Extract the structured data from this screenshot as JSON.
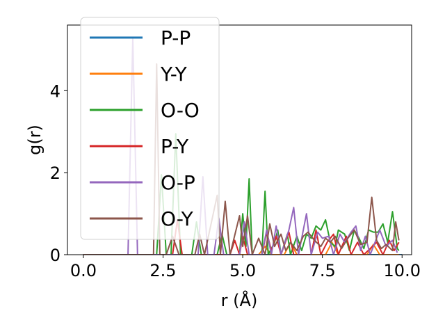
{
  "chart_data": {
    "type": "line",
    "title": "",
    "xlabel": "r (Å)",
    "ylabel": "g(r)",
    "xlim": [
      -0.5,
      10.3
    ],
    "ylim": [
      0,
      5.6
    ],
    "xticks": [
      0.0,
      2.5,
      5.0,
      7.5,
      10.0
    ],
    "xtick_labels": [
      "0.0",
      "2.5",
      "5.0",
      "7.5",
      "10.0"
    ],
    "yticks": [
      0,
      2,
      4
    ],
    "ytick_labels": [
      "0",
      "2",
      "4"
    ],
    "grid": false,
    "legend_position": "top-left",
    "series": [
      {
        "name": "P-P",
        "color": "#1f77b4",
        "points": [
          [
            0.0,
            0
          ],
          [
            10.0,
            0
          ]
        ]
      },
      {
        "name": "Y-Y",
        "color": "#ff7f0e",
        "points": [
          [
            0.0,
            0
          ],
          [
            5.5,
            0
          ],
          [
            5.7,
            0.2
          ],
          [
            5.9,
            0
          ],
          [
            6.3,
            0
          ],
          [
            6.5,
            0.3
          ],
          [
            6.7,
            0
          ],
          [
            7.6,
            0
          ],
          [
            7.8,
            0.3
          ],
          [
            8.0,
            0
          ],
          [
            8.9,
            0
          ],
          [
            9.1,
            0.25
          ],
          [
            9.3,
            0
          ],
          [
            9.9,
            0
          ]
        ]
      },
      {
        "name": "O-O",
        "color": "#2ca02c",
        "points": [
          [
            0.0,
            0
          ],
          [
            2.3,
            0
          ],
          [
            2.45,
            1.95
          ],
          [
            2.6,
            0
          ],
          [
            2.75,
            0
          ],
          [
            2.9,
            2.95
          ],
          [
            3.05,
            0
          ],
          [
            3.4,
            0
          ],
          [
            3.55,
            0.8
          ],
          [
            3.7,
            0
          ],
          [
            4.2,
            0
          ],
          [
            4.35,
            0.5
          ],
          [
            4.5,
            0
          ],
          [
            4.9,
            0
          ],
          [
            5.0,
            1.0
          ],
          [
            5.1,
            0.2
          ],
          [
            5.2,
            1.85
          ],
          [
            5.3,
            0
          ],
          [
            5.6,
            0
          ],
          [
            5.7,
            1.55
          ],
          [
            5.8,
            0
          ],
          [
            6.0,
            0.3
          ],
          [
            6.1,
            0.6
          ],
          [
            6.2,
            0
          ],
          [
            6.4,
            0.5
          ],
          [
            6.5,
            0
          ],
          [
            6.7,
            0.45
          ],
          [
            6.85,
            0.1
          ],
          [
            7.0,
            0.5
          ],
          [
            7.15,
            0.4
          ],
          [
            7.3,
            0.7
          ],
          [
            7.45,
            0.6
          ],
          [
            7.6,
            0.85
          ],
          [
            7.75,
            0.3
          ],
          [
            7.9,
            0.2
          ],
          [
            8.0,
            0.6
          ],
          [
            8.2,
            0.5
          ],
          [
            8.35,
            0.1
          ],
          [
            8.5,
            0.6
          ],
          [
            8.65,
            0.4
          ],
          [
            8.8,
            0.15
          ],
          [
            8.95,
            0.6
          ],
          [
            9.1,
            0.55
          ],
          [
            9.25,
            0.55
          ],
          [
            9.4,
            0.75
          ],
          [
            9.55,
            0.3
          ],
          [
            9.7,
            1.05
          ],
          [
            9.85,
            0.15
          ],
          [
            9.9,
            0.1
          ]
        ]
      },
      {
        "name": "P-Y",
        "color": "#d62728",
        "points": [
          [
            0.0,
            0
          ],
          [
            2.8,
            0
          ],
          [
            2.95,
            0.85
          ],
          [
            3.1,
            0
          ],
          [
            4.6,
            0
          ],
          [
            4.75,
            0.35
          ],
          [
            4.9,
            0
          ],
          [
            5.0,
            0.45
          ],
          [
            5.15,
            0
          ],
          [
            5.6,
            0
          ],
          [
            5.75,
            0.55
          ],
          [
            5.9,
            0.1
          ],
          [
            6.05,
            0.45
          ],
          [
            6.2,
            0
          ],
          [
            6.45,
            0.55
          ],
          [
            6.6,
            0
          ],
          [
            7.15,
            0
          ],
          [
            7.3,
            0.6
          ],
          [
            7.45,
            0
          ],
          [
            7.65,
            0.3
          ],
          [
            7.85,
            0.5
          ],
          [
            8.0,
            0
          ],
          [
            8.25,
            0.45
          ],
          [
            8.4,
            0
          ],
          [
            8.6,
            0.3
          ],
          [
            8.8,
            0
          ],
          [
            9.2,
            0.3
          ],
          [
            9.4,
            0
          ],
          [
            9.6,
            0.35
          ],
          [
            9.75,
            0.1
          ],
          [
            9.9,
            0.3
          ]
        ]
      },
      {
        "name": "O-P",
        "color": "#9467bd",
        "points": [
          [
            0.0,
            0
          ],
          [
            1.4,
            0
          ],
          [
            1.55,
            5.3
          ],
          [
            1.7,
            0
          ],
          [
            3.6,
            0
          ],
          [
            3.75,
            1.9
          ],
          [
            3.9,
            0
          ],
          [
            4.1,
            0
          ],
          [
            4.25,
            0.9
          ],
          [
            4.4,
            0
          ],
          [
            4.9,
            0
          ],
          [
            5.05,
            0.8
          ],
          [
            5.2,
            0
          ],
          [
            5.6,
            0
          ],
          [
            5.75,
            0.6
          ],
          [
            5.9,
            0
          ],
          [
            6.05,
            0.7
          ],
          [
            6.2,
            0
          ],
          [
            6.45,
            0.6
          ],
          [
            6.6,
            1.15
          ],
          [
            6.75,
            0
          ],
          [
            7.0,
            1.0
          ],
          [
            7.15,
            0
          ],
          [
            7.35,
            0.55
          ],
          [
            7.5,
            0.4
          ],
          [
            7.7,
            0.45
          ],
          [
            7.85,
            0
          ],
          [
            8.05,
            0.5
          ],
          [
            8.2,
            0.3
          ],
          [
            8.4,
            0.55
          ],
          [
            8.55,
            0.7
          ],
          [
            8.7,
            0.1
          ],
          [
            8.85,
            0.45
          ],
          [
            9.0,
            0
          ],
          [
            9.3,
            0.6
          ],
          [
            9.5,
            0.2
          ],
          [
            9.7,
            0.35
          ],
          [
            9.85,
            0.05
          ]
        ]
      },
      {
        "name": "O-Y",
        "color": "#8c564b",
        "points": [
          [
            0.0,
            0
          ],
          [
            2.2,
            0
          ],
          [
            2.3,
            4.65
          ],
          [
            2.4,
            0
          ],
          [
            2.6,
            0
          ],
          [
            2.8,
            0.45
          ],
          [
            3.0,
            0
          ],
          [
            3.5,
            0
          ],
          [
            3.65,
            0.5
          ],
          [
            3.8,
            0
          ],
          [
            4.2,
            1.45
          ],
          [
            4.3,
            0
          ],
          [
            4.45,
            1.3
          ],
          [
            4.6,
            0
          ],
          [
            4.9,
            0.95
          ],
          [
            5.0,
            0.2
          ],
          [
            5.15,
            0.95
          ],
          [
            5.3,
            0
          ],
          [
            5.5,
            0.4
          ],
          [
            5.7,
            0
          ],
          [
            5.85,
            0.75
          ],
          [
            6.0,
            0.2
          ],
          [
            6.2,
            0.5
          ],
          [
            6.35,
            0.1
          ],
          [
            6.5,
            0.3
          ],
          [
            6.7,
            0.1
          ],
          [
            6.9,
            0.45
          ],
          [
            7.05,
            0.55
          ],
          [
            7.25,
            0.35
          ],
          [
            7.45,
            0.2
          ],
          [
            7.6,
            0.4
          ],
          [
            7.75,
            0.3
          ],
          [
            7.9,
            0.45
          ],
          [
            8.1,
            0.15
          ],
          [
            8.3,
            0.4
          ],
          [
            8.5,
            0.6
          ],
          [
            8.7,
            0.25
          ],
          [
            8.9,
            0.3
          ],
          [
            9.05,
            1.4
          ],
          [
            9.2,
            0.35
          ],
          [
            9.35,
            0.15
          ],
          [
            9.5,
            0.25
          ],
          [
            9.7,
            0.1
          ],
          [
            9.8,
            0.8
          ],
          [
            9.9,
            0.35
          ]
        ]
      }
    ]
  }
}
